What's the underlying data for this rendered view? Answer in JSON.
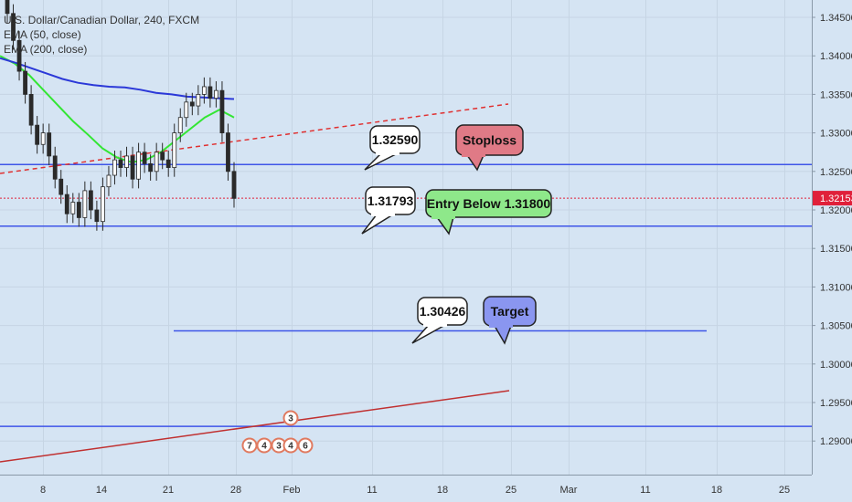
{
  "legend": {
    "symbol": "U.S. Dollar/Canadian Dollar, 240, FXCM",
    "ema1": "EMA (50, close)",
    "ema2": "EMA (200, close)"
  },
  "colors": {
    "background": "#d5e4f3",
    "axis_background": "#d5e4f3",
    "level_line": "#3e55e8",
    "trend_dashed": "#e03030",
    "trend_solid": "#c03030",
    "ema50": "#33e633",
    "ema200": "#2b38d8",
    "candle_up": "#2a2a2a",
    "candle_down": "#2a2a2a",
    "price_marker": "#e0203a",
    "stoploss_bubble": "#e07a86",
    "entry_bubble": "#8ee88a",
    "target_bubble": "#8a96f0"
  },
  "chart_data": {
    "type": "candlestick",
    "title": "U.S. Dollar/Canadian Dollar, 240, FXCM",
    "y_range": [
      1.2875,
      1.3475
    ],
    "y_ticks": [
      "1.34500",
      "1.34000",
      "1.33500",
      "1.33000",
      "1.32500",
      "1.32000",
      "1.31500",
      "1.31000",
      "1.30500",
      "1.30000",
      "1.29500",
      "1.29000"
    ],
    "x_ticks": [
      "8",
      "14",
      "21",
      "28",
      "Feb",
      "11",
      "18",
      "25",
      "Mar",
      "11",
      "18",
      "25"
    ],
    "current_price": "1.32153",
    "horizontal_levels": [
      1.3259,
      1.3179,
      1.3043,
      1.2919
    ],
    "annotations": [
      {
        "kind": "price",
        "text": "1.32590",
        "y": 1.3259
      },
      {
        "kind": "price",
        "text": "1.31793",
        "y": 1.3179
      },
      {
        "kind": "price",
        "text": "1.30426",
        "y": 1.3043
      },
      {
        "kind": "label",
        "text": "Stoploss"
      },
      {
        "kind": "label",
        "text": "Entry Below 1.31800"
      },
      {
        "kind": "label",
        "text": "Target"
      }
    ],
    "candles_close": [
      1.3455,
      1.342,
      1.338,
      1.335,
      1.331,
      1.3285,
      1.33,
      1.327,
      1.324,
      1.322,
      1.3195,
      1.321,
      1.319,
      1.3225,
      1.32,
      1.3185,
      1.323,
      1.3245,
      1.3265,
      1.3255,
      1.327,
      1.324,
      1.3275,
      1.326,
      1.325,
      1.3275,
      1.3265,
      1.3255,
      1.33,
      1.332,
      1.334,
      1.3335,
      1.335,
      1.336,
      1.3345,
      1.3355,
      1.33,
      1.325,
      1.3215
    ],
    "ema50": [
      1.34,
      1.339,
      1.3375,
      1.3355,
      1.3335,
      1.3315,
      1.3298,
      1.328,
      1.3268,
      1.3262,
      1.3265,
      1.3275,
      1.329,
      1.3305,
      1.332,
      1.333,
      1.332
    ],
    "ema200": [
      1.3397,
      1.3391,
      1.3384,
      1.3377,
      1.337,
      1.3365,
      1.3362,
      1.336,
      1.3359,
      1.3356,
      1.3352,
      1.335,
      1.3347,
      1.3346,
      1.3345,
      1.3344
    ],
    "event_icons": [
      "7",
      "4",
      "3",
      "4",
      "6",
      "3"
    ]
  }
}
